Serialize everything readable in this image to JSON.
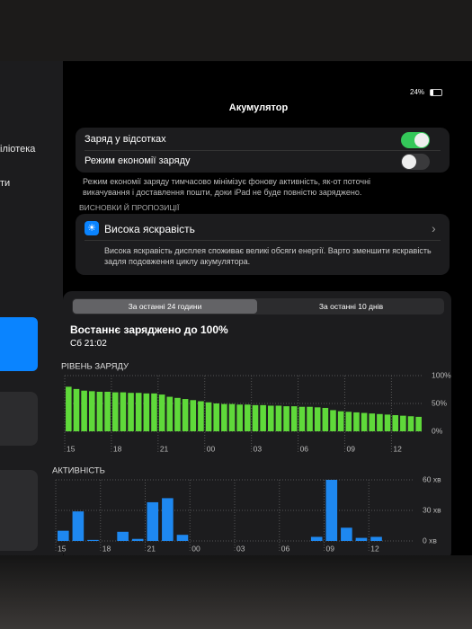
{
  "status": {
    "battery": "24%"
  },
  "sidebar": {
    "items": [
      "іліотека",
      "ти"
    ]
  },
  "header": {
    "title": "Акумулятор"
  },
  "toggles": [
    {
      "label": "Заряд у відсотках",
      "on": true
    },
    {
      "label": "Режим економії заряду",
      "on": false
    }
  ],
  "low_power_note": "Режим економії заряду тимчасово мінімізує фонову активність, як-от поточні викачування і доставлення пошти, доки iPad не буде повністю заряджено.",
  "insights": {
    "heading": "ВИСНОВКИ Й ПРОПОЗИЦІЇ",
    "title": "Висока яскравість",
    "text": "Висока яскравість дисплея споживає великі обсяги енергії. Варто зменшити яскравість задля подовження циклу акумулятора."
  },
  "tabs": {
    "items": [
      "За останні 24 години",
      "За останні 10 днів"
    ],
    "selected": 0
  },
  "last_charged": {
    "title": "Востаннє заряджено до 100%",
    "time": "Сб 21:02"
  },
  "chart_data": [
    {
      "type": "bar",
      "title": "РІВЕНЬ ЗАРЯДУ",
      "color": "#5fd93a",
      "values": [
        80,
        76,
        73,
        72,
        71,
        71,
        70,
        70,
        69,
        69,
        68,
        68,
        66,
        62,
        60,
        58,
        56,
        54,
        52,
        50,
        49,
        49,
        48,
        48,
        47,
        47,
        46,
        46,
        45,
        45,
        44,
        44,
        43,
        42,
        38,
        36,
        35,
        34,
        33,
        32,
        31,
        30,
        29,
        28,
        27,
        26
      ],
      "ylim": [
        0,
        100
      ],
      "yticks": [
        {
          "value": 0,
          "label": "0%"
        },
        {
          "value": 50,
          "label": "50%"
        },
        {
          "value": 100,
          "label": "100%"
        }
      ],
      "x_labels": [
        "15",
        "18",
        "21",
        "00",
        "03",
        "06",
        "09",
        "12"
      ],
      "grid": true
    },
    {
      "type": "bar",
      "title": "АКТИВНІСТЬ",
      "color": "#1e88f0",
      "values": [
        10,
        29,
        1,
        0,
        9,
        2,
        38,
        42,
        6,
        0,
        0,
        0,
        0,
        0,
        0,
        0,
        0,
        4,
        60,
        13,
        3,
        4,
        0,
        0
      ],
      "ylim": [
        0,
        60
      ],
      "yticks": [
        {
          "value": 0,
          "label": "0 хв"
        },
        {
          "value": 30,
          "label": "30 хв"
        },
        {
          "value": 60,
          "label": "60 хв"
        }
      ],
      "x_labels": [
        "15",
        "18",
        "21",
        "00",
        "03",
        "06",
        "09",
        "12"
      ],
      "grid": true
    }
  ]
}
